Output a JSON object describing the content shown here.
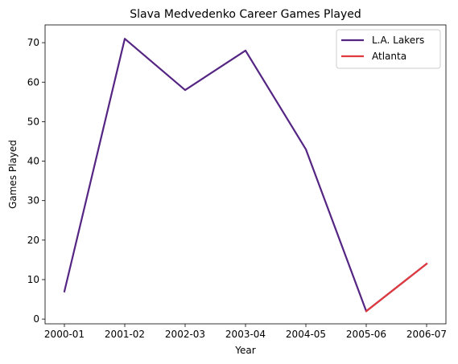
{
  "chart_data": {
    "type": "line",
    "title": "Slava Medvedenko Career Games Played",
    "xlabel": "Year",
    "ylabel": "Games Played",
    "categories": [
      "2000-01",
      "2001-02",
      "2002-03",
      "2003-04",
      "2004-05",
      "2005-06",
      "2006-07"
    ],
    "ylim": [
      -1.2,
      74.5
    ],
    "yticks": [
      0,
      10,
      20,
      30,
      40,
      50,
      60,
      70
    ],
    "grid": false,
    "legend_position": "top-right",
    "series": [
      {
        "name": "L.A. Lakers",
        "color": "#552583",
        "values": [
          7,
          71,
          58,
          68,
          43,
          2,
          14
        ]
      },
      {
        "name": "Atlanta",
        "color": "#E03A3E",
        "values": [
          null,
          null,
          null,
          null,
          null,
          2,
          14
        ]
      }
    ]
  }
}
